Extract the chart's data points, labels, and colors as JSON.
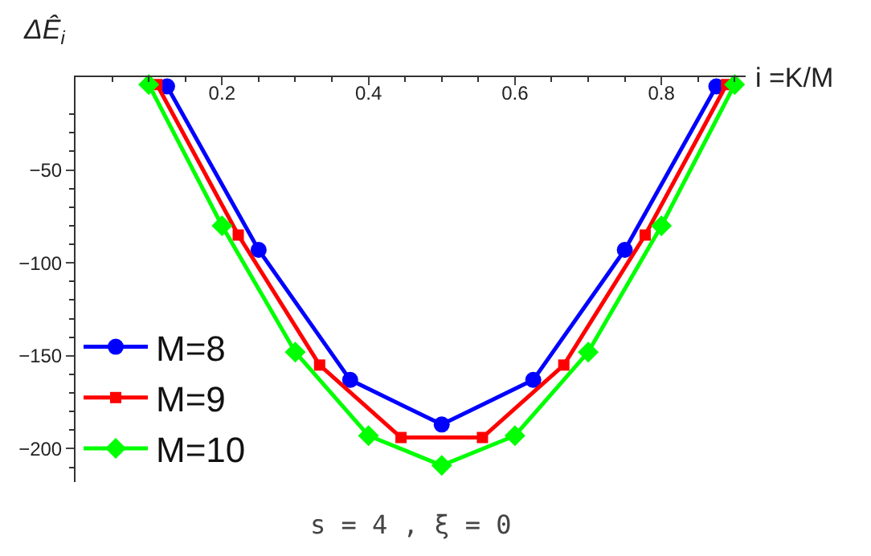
{
  "chart_data": {
    "type": "line",
    "xlabel": "i =K/M",
    "ylabel": "ΔÊ$_{i}$",
    "annotations": [
      "s = 4 , ξ = 0"
    ],
    "xlim": [
      0,
      0.915
    ],
    "xticks": [
      0.2,
      0.4,
      0.6,
      0.8
    ],
    "ylim": [
      -218,
      0
    ],
    "yticks": [
      -50,
      -100,
      -150,
      -200
    ],
    "legend": "bottom left",
    "series": [
      {
        "name": "M=8",
        "color": "#0000ff",
        "marker": "circle",
        "x": [
          0.125,
          0.25,
          0.375,
          0.5,
          0.625,
          0.75,
          0.875
        ],
        "values": [
          -5,
          -93,
          -163,
          -187,
          -163,
          -93,
          -5
        ]
      },
      {
        "name": "M=9",
        "color": "#ff0000",
        "marker": "square",
        "x": [
          0.1111,
          0.2222,
          0.3333,
          0.4444,
          0.5556,
          0.6667,
          0.7778,
          0.8889
        ],
        "values": [
          -4,
          -85,
          -155,
          -194,
          -194,
          -155,
          -85,
          -4
        ]
      },
      {
        "name": "M=10",
        "color": "#00ff00",
        "marker": "diamond",
        "x": [
          0.1,
          0.2,
          0.3,
          0.4,
          0.5,
          0.6,
          0.7,
          0.8,
          0.9
        ],
        "values": [
          -4,
          -80,
          -148,
          -193,
          -209,
          -193,
          -148,
          -80,
          -4
        ]
      }
    ]
  }
}
